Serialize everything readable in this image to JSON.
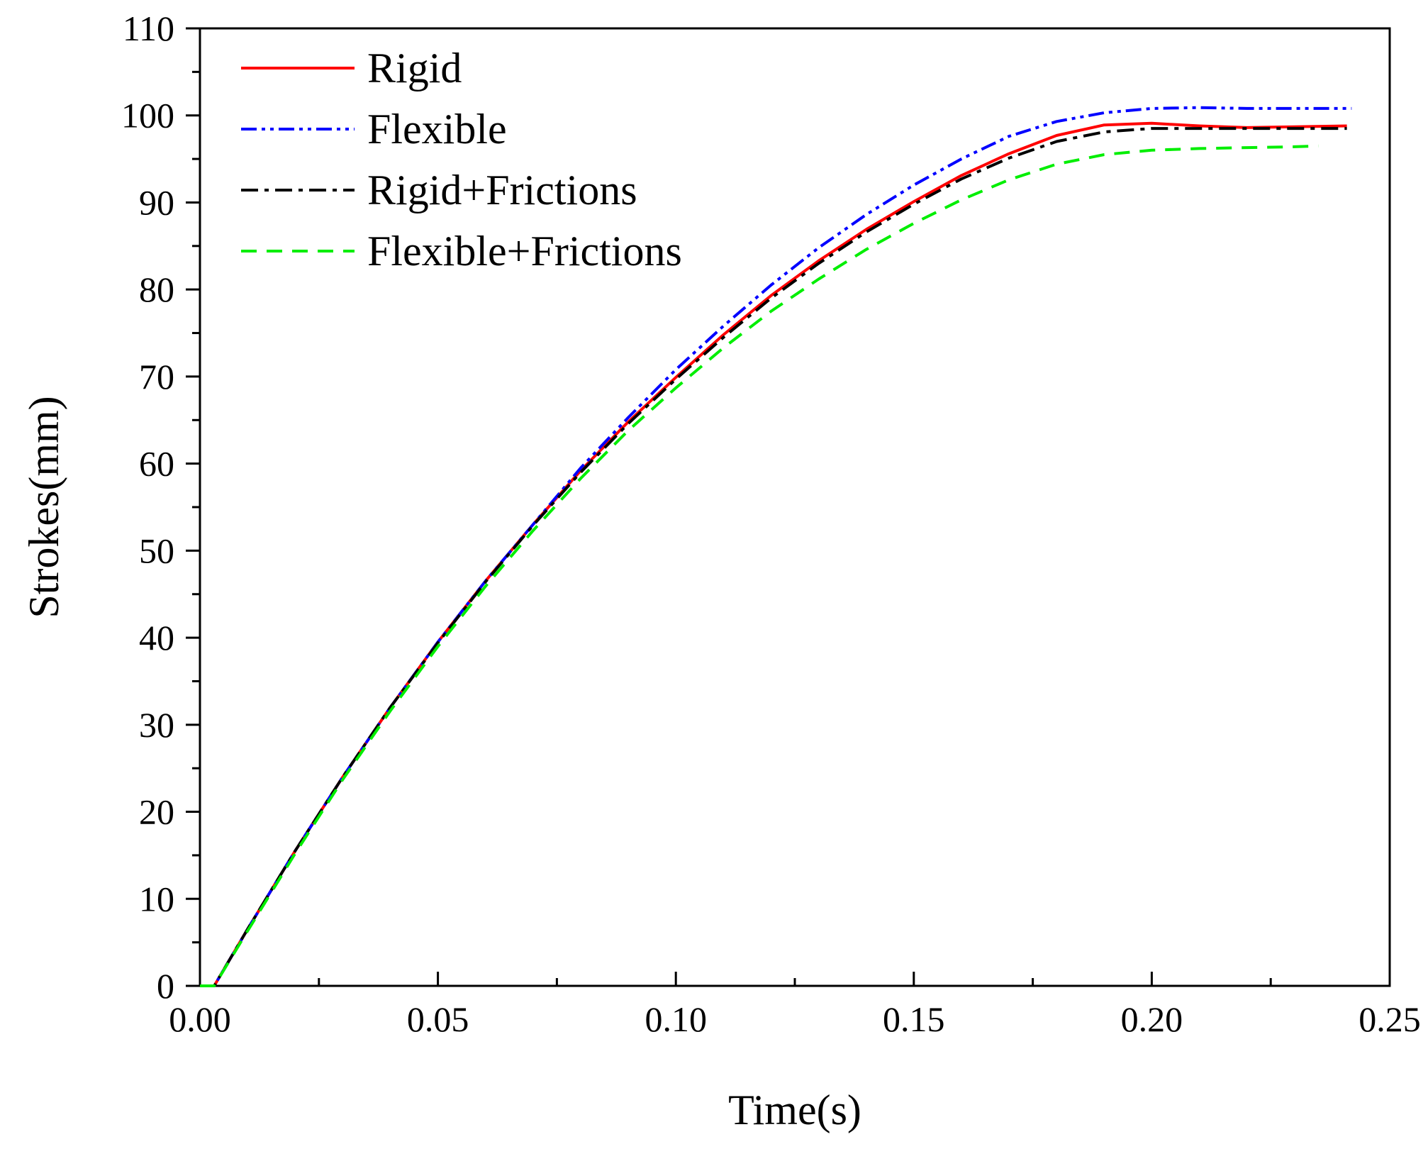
{
  "chart_data": {
    "type": "line",
    "title": "",
    "xlabel": "Time(s)",
    "ylabel": "Strokes(mm)",
    "xlim": [
      0,
      0.25
    ],
    "ylim": [
      0,
      110
    ],
    "x_ticks": [
      0,
      0.05,
      0.1,
      0.15,
      0.2,
      0.25
    ],
    "x_tick_labels": [
      "0.00",
      "0.05",
      "0.10",
      "0.15",
      "0.20",
      "0.25"
    ],
    "y_ticks": [
      0,
      10,
      20,
      30,
      40,
      50,
      60,
      70,
      80,
      90,
      100,
      110
    ],
    "y_tick_labels": [
      "0",
      "10",
      "20",
      "30",
      "40",
      "50",
      "60",
      "70",
      "80",
      "90",
      "100",
      "110"
    ],
    "grid": false,
    "legend_position": "top-left",
    "series": [
      {
        "name": "Rigid",
        "color": "#ff0000",
        "dash": "solid",
        "x": [
          0,
          0.003,
          0.01,
          0.02,
          0.03,
          0.04,
          0.05,
          0.06,
          0.07,
          0.08,
          0.09,
          0.1,
          0.11,
          0.12,
          0.13,
          0.14,
          0.15,
          0.16,
          0.17,
          0.18,
          0.19,
          0.2,
          0.21,
          0.22,
          0.23,
          0.241
        ],
        "y": [
          0,
          0,
          6.5,
          15.5,
          24,
          32,
          39.5,
          46.5,
          53,
          59.2,
          64.8,
          69.9,
          74.8,
          79.3,
          83.3,
          86.9,
          90.1,
          93.1,
          95.6,
          97.7,
          98.9,
          99.1,
          98.8,
          98.6,
          98.7,
          98.8
        ]
      },
      {
        "name": "Flexible",
        "color": "#0000ff",
        "dash": "dash-dot-dot",
        "x": [
          0,
          0.003,
          0.01,
          0.02,
          0.03,
          0.04,
          0.05,
          0.06,
          0.07,
          0.08,
          0.09,
          0.1,
          0.11,
          0.12,
          0.13,
          0.14,
          0.15,
          0.16,
          0.17,
          0.18,
          0.19,
          0.2,
          0.21,
          0.22,
          0.23,
          0.242
        ],
        "y": [
          0,
          0,
          6.5,
          15.5,
          24,
          32,
          39.5,
          46.5,
          53,
          59.5,
          65.3,
          70.8,
          75.8,
          80.5,
          84.8,
          88.6,
          92,
          95,
          97.6,
          99.3,
          100.3,
          100.8,
          100.9,
          100.8,
          100.8,
          100.8
        ]
      },
      {
        "name": "Rigid+Frictions",
        "color": "#000000",
        "dash": "dash-dot",
        "x": [
          0,
          0.003,
          0.01,
          0.02,
          0.03,
          0.04,
          0.05,
          0.06,
          0.07,
          0.08,
          0.09,
          0.1,
          0.11,
          0.12,
          0.13,
          0.14,
          0.15,
          0.16,
          0.17,
          0.18,
          0.19,
          0.2,
          0.21,
          0.22,
          0.23,
          0.241
        ],
        "y": [
          0,
          0,
          6.5,
          15.5,
          24,
          32,
          39.4,
          46.4,
          52.9,
          59,
          64.6,
          69.7,
          74.5,
          79,
          83,
          86.6,
          89.8,
          92.7,
          95.1,
          97,
          98.1,
          98.5,
          98.5,
          98.5,
          98.5,
          98.5
        ]
      },
      {
        "name": "Flexible+Frictions",
        "color": "#00ee00",
        "dash": "dashed",
        "x": [
          0,
          0.003,
          0.01,
          0.02,
          0.03,
          0.04,
          0.05,
          0.06,
          0.07,
          0.08,
          0.09,
          0.1,
          0.11,
          0.12,
          0.13,
          0.14,
          0.15,
          0.16,
          0.17,
          0.18,
          0.19,
          0.2,
          0.21,
          0.22,
          0.23,
          0.235
        ],
        "y": [
          0,
          0,
          6.3,
          15.2,
          23.7,
          31.6,
          39,
          45.9,
          52.3,
          58.3,
          63.8,
          68.7,
          73.3,
          77.5,
          81.2,
          84.6,
          87.6,
          90.3,
          92.6,
          94.4,
          95.5,
          96,
          96.2,
          96.3,
          96.4,
          96.5
        ]
      }
    ]
  }
}
